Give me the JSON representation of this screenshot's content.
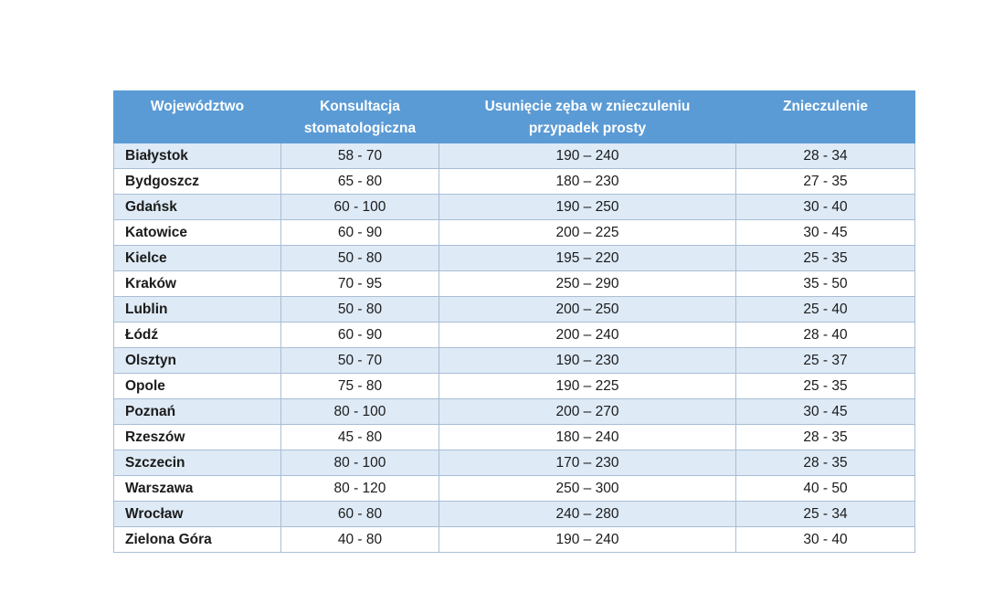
{
  "page": {
    "background": "#FFFFFF"
  },
  "table": {
    "header": {
      "col1": "Województwo",
      "col2": "Konsultacja\nstomatologiczna",
      "col3": "Usunięcie zęba w znieczuleniu\nprzypadek prosty",
      "col4": "Znieczulenie"
    },
    "colors": {
      "header_bg": "#5B9BD5",
      "header_text": "#FFFFFF",
      "stripe_bg": "#DEEAF6",
      "row_bg": "#FFFFFF",
      "border": "#A9BED4",
      "text": "#1B1B1B"
    }
  },
  "chart_data": {
    "type": "table",
    "title": "",
    "columns": [
      "Województwo",
      "Konsultacja stomatologiczna",
      "Usunięcie zęba w znieczuleniu przypadek prosty",
      "Znieczulenie"
    ],
    "rows": [
      [
        "Białystok",
        "58 - 70",
        "190 – 240",
        "28 - 34"
      ],
      [
        "Bydgoszcz",
        "65 - 80",
        "180 – 230",
        "27 - 35"
      ],
      [
        "Gdańsk",
        "60 - 100",
        "190 – 250",
        "30 - 40"
      ],
      [
        "Katowice",
        "60 - 90",
        "200 – 225",
        "30 - 45"
      ],
      [
        "Kielce",
        "50 - 80",
        "195 – 220",
        "25 - 35"
      ],
      [
        "Kraków",
        "70 - 95",
        "250 – 290",
        "35 - 50"
      ],
      [
        "Lublin",
        "50 - 80",
        "200 – 250",
        "25 - 40"
      ],
      [
        "Łódź",
        "60 - 90",
        "200 – 240",
        "28 - 40"
      ],
      [
        "Olsztyn",
        "50 - 70",
        "190 – 230",
        "25 - 37"
      ],
      [
        "Opole",
        "75 - 80",
        "190 – 225",
        "25 - 35"
      ],
      [
        "Poznań",
        "80 - 100",
        "200 – 270",
        "30 - 45"
      ],
      [
        "Rzeszów",
        "45 - 80",
        "180 – 240",
        "28 - 35"
      ],
      [
        "Szczecin",
        "80 - 100",
        "170 – 230",
        "28 - 35"
      ],
      [
        "Warszawa",
        "80 - 120",
        "250 – 300",
        "40 - 50"
      ],
      [
        "Wrocław",
        "60 - 80",
        "240 – 280",
        "25 - 34"
      ],
      [
        "Zielona Góra",
        "40 - 80",
        "190 – 240",
        "30 - 40"
      ]
    ]
  }
}
